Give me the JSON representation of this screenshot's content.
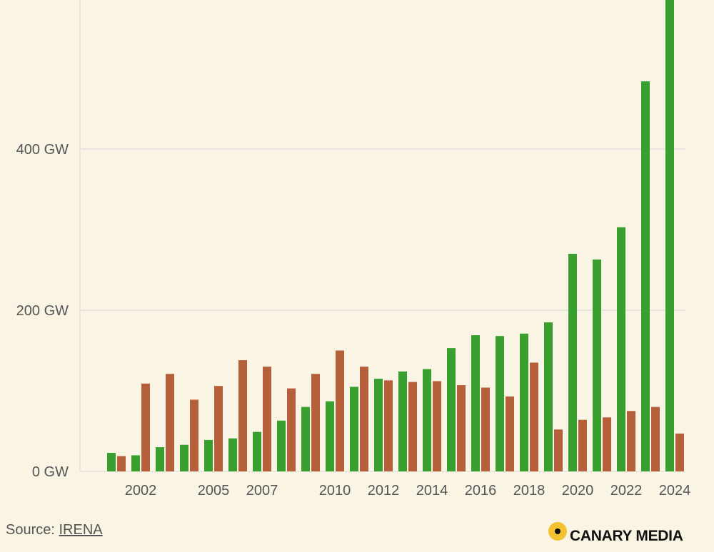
{
  "colors": {
    "series_a": "#39a02f",
    "series_b": "#b5603a",
    "background": "#f9f4e4"
  },
  "chart_data": {
    "type": "bar",
    "title": "",
    "xlabel": "",
    "ylabel": "",
    "x": [
      2001,
      2002,
      2003,
      2004,
      2005,
      2006,
      2007,
      2008,
      2009,
      2010,
      2011,
      2012,
      2013,
      2014,
      2015,
      2016,
      2017,
      2018,
      2019,
      2020,
      2021,
      2022,
      2023,
      2024
    ],
    "x_tick_labels": [
      "2002",
      "2005",
      "2007",
      "2010",
      "2012",
      "2014",
      "2016",
      "2018",
      "2020",
      "2022",
      "2024"
    ],
    "y_tick_labels": [
      "0 GW",
      "200 GW",
      "400 GW"
    ],
    "y_ticks": [
      0,
      200,
      400
    ],
    "ylim": [
      0,
      585
    ],
    "grid": true,
    "series": [
      {
        "color": "#39a02f",
        "values": [
          23,
          20,
          30,
          33,
          39,
          41,
          49,
          63,
          80,
          87,
          105,
          115,
          124,
          127,
          153,
          169,
          168,
          171,
          185,
          270,
          263,
          303,
          484,
          585
        ]
      },
      {
        "color": "#b5603a",
        "values": [
          19,
          109,
          121,
          89,
          106,
          138,
          130,
          103,
          121,
          150,
          130,
          113,
          111,
          112,
          107,
          104,
          93,
          135,
          52,
          64,
          67,
          75,
          80,
          47
        ]
      }
    ]
  },
  "footer": {
    "source_label": "Source: ",
    "source_link": "IRENA",
    "logo_text": "CANARY MEDIA",
    "logo_icon": "canary-dot-icon"
  }
}
